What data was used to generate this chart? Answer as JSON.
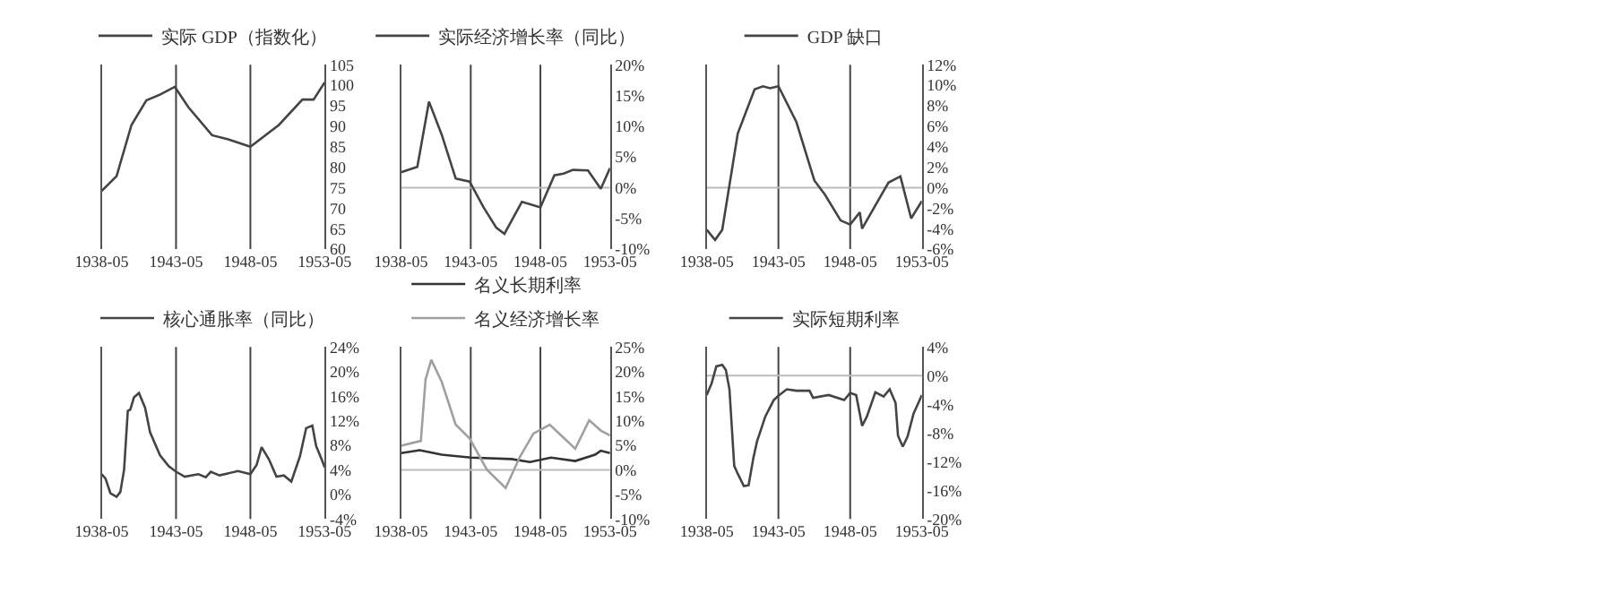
{
  "chart_data": [
    {
      "type": "line",
      "legend": "top",
      "xlim": [
        "1938-05",
        "1953-05"
      ],
      "xticks": [
        "1938-05",
        "1943-05",
        "1948-05",
        "1953-05"
      ],
      "ylim": [
        60,
        105
      ],
      "yticks": [
        60,
        65,
        70,
        75,
        80,
        85,
        90,
        95,
        100,
        105
      ],
      "ref_lines": [
        {
          "axis": "x",
          "value": "1943-05",
          "color": "#444444"
        },
        {
          "axis": "x",
          "value": "1948-05",
          "color": "#444444"
        }
      ],
      "series": [
        {
          "name": "实际 GDP（指数化）",
          "color": "#444444",
          "x": [
            "1938-05",
            "1939-05",
            "1940-05",
            "1941-05",
            "1942-04",
            "1943-04",
            "1944-03",
            "1945-10",
            "1946-11",
            "1948-05",
            "1950-04",
            "1951-11",
            "1952-08",
            "1953-05"
          ],
          "values": [
            74.2,
            77.8,
            90.3,
            96.3,
            97.7,
            99.6,
            94.6,
            87.8,
            86.8,
            85,
            90.3,
            96.5,
            96.5,
            100.7
          ]
        }
      ]
    },
    {
      "type": "line",
      "legend": "top",
      "xlim": [
        "1938-05",
        "1953-05"
      ],
      "xticks": [
        "1938-05",
        "1943-05",
        "1948-05",
        "1953-05"
      ],
      "ylim": [
        -10,
        20
      ],
      "yticks": [
        {
          "value": -10,
          "label": "-10%"
        },
        {
          "value": -5,
          "label": "-5%"
        },
        {
          "value": 0,
          "label": "0%"
        },
        {
          "value": 5,
          "label": "5%"
        },
        {
          "value": 10,
          "label": "10%"
        },
        {
          "value": 15,
          "label": "15%"
        },
        {
          "value": 20,
          "label": "20%"
        }
      ],
      "ref_lines": [
        {
          "axis": "x",
          "value": "1943-05",
          "color": "#444444"
        },
        {
          "axis": "x",
          "value": "1948-05",
          "color": "#444444"
        },
        {
          "axis": "y",
          "value": 0,
          "color": "#bbbbbb"
        }
      ],
      "series": [
        {
          "name": "实际经济增长率（同比）",
          "color": "#444444",
          "x": [
            "1938-05",
            "1939-07",
            "1940-05",
            "1941-04",
            "1942-04",
            "1943-04",
            "1944-04",
            "1945-03",
            "1945-10",
            "1947-01",
            "1948-05",
            "1949-05",
            "1950-01",
            "1950-09",
            "1951-10",
            "1952-09",
            "1953-05"
          ],
          "values": [
            2.5,
            3.4,
            14,
            8.6,
            1.5,
            1.0,
            -3.2,
            -6.5,
            -7.5,
            -2.3,
            -3.2,
            2.0,
            2.3,
            2.9,
            2.8,
            -0.2,
            3.2
          ]
        }
      ]
    },
    {
      "type": "line",
      "legend": "top",
      "xlim": [
        "1938-05",
        "1953-05"
      ],
      "xticks": [
        "1938-05",
        "1943-05",
        "1948-05",
        "1953-05"
      ],
      "ylim": [
        -6,
        12
      ],
      "yticks": [
        {
          "value": -6,
          "label": "-6%"
        },
        {
          "value": -4,
          "label": "-4%"
        },
        {
          "value": -2,
          "label": "-2%"
        },
        {
          "value": 0,
          "label": "0%"
        },
        {
          "value": 2,
          "label": "2%"
        },
        {
          "value": 4,
          "label": "4%"
        },
        {
          "value": 6,
          "label": "6%"
        },
        {
          "value": 8,
          "label": "8%"
        },
        {
          "value": 10,
          "label": "10%"
        },
        {
          "value": 12,
          "label": "12%"
        }
      ],
      "ref_lines": [
        {
          "axis": "x",
          "value": "1943-05",
          "color": "#444444"
        },
        {
          "axis": "x",
          "value": "1948-05",
          "color": "#444444"
        },
        {
          "axis": "y",
          "value": 0,
          "color": "#bbbbbb"
        }
      ],
      "series": [
        {
          "name": "GDP 缺口",
          "color": "#444444",
          "x": [
            "1938-05",
            "1938-12",
            "1939-06",
            "1940-07",
            "1941-09",
            "1942-04",
            "1942-10",
            "1943-05",
            "1944-08",
            "1945-11",
            "1946-08",
            "1947-09",
            "1948-05",
            "1949-01",
            "1949-03",
            "1951-01",
            "1951-11",
            "1952-08",
            "1953-05"
          ],
          "values": [
            -4.1,
            -5.1,
            -4.1,
            5.3,
            9.6,
            9.9,
            9.7,
            9.9,
            6.4,
            0.7,
            -0.7,
            -3.2,
            -3.6,
            -2.4,
            -4.0,
            0.5,
            1.1,
            -3.0,
            -1.3
          ]
        }
      ]
    },
    {
      "type": "line",
      "legend": "top",
      "xlim": [
        "1938-05",
        "1953-05"
      ],
      "xticks": [
        "1938-05",
        "1943-05",
        "1948-05",
        "1953-05"
      ],
      "ylim": [
        -4,
        24
      ],
      "yticks": [
        {
          "value": -4,
          "label": "-4%"
        },
        {
          "value": 0,
          "label": "0%"
        },
        {
          "value": 4,
          "label": "4%"
        },
        {
          "value": 8,
          "label": "8%"
        },
        {
          "value": 12,
          "label": "12%"
        },
        {
          "value": 16,
          "label": "16%"
        },
        {
          "value": 20,
          "label": "20%"
        },
        {
          "value": 24,
          "label": "24%"
        }
      ],
      "ref_lines": [
        {
          "axis": "x",
          "value": "1943-05",
          "color": "#444444"
        },
        {
          "axis": "x",
          "value": "1948-05",
          "color": "#444444"
        }
      ],
      "series": [
        {
          "name": "核心通胀率（同比）",
          "color": "#444444",
          "x": [
            "1938-05",
            "1938-08",
            "1938-12",
            "1939-05",
            "1939-08",
            "1939-11",
            "1940-02",
            "1940-04",
            "1940-07",
            "1940-11",
            "1941-04",
            "1941-08",
            "1942-04",
            "1942-11",
            "1943-05",
            "1943-12",
            "1944-11",
            "1945-05",
            "1945-09",
            "1946-04",
            "1947-07",
            "1948-05",
            "1948-10",
            "1949-02",
            "1949-08",
            "1950-02",
            "1950-08",
            "1951-02",
            "1951-09",
            "1952-02",
            "1952-07",
            "1952-10",
            "1953-03",
            "1953-05"
          ],
          "values": [
            3.3,
            2.6,
            0.2,
            -0.4,
            0.4,
            4.0,
            13.6,
            13.8,
            15.8,
            16.5,
            14.1,
            10.1,
            6.4,
            4.6,
            3.7,
            2.9,
            3.3,
            2.8,
            3.7,
            3.1,
            3.8,
            3.3,
            4.8,
            7.7,
            5.7,
            2.9,
            3.1,
            2.1,
            6.2,
            10.8,
            11.2,
            7.9,
            5.5,
            4.4
          ]
        }
      ]
    },
    {
      "type": "line",
      "legend": "top",
      "xlim": [
        "1938-05",
        "1953-05"
      ],
      "xticks": [
        "1938-05",
        "1943-05",
        "1948-05",
        "1953-05"
      ],
      "ylim": [
        -10,
        25
      ],
      "yticks": [
        {
          "value": -10,
          "label": "-10%"
        },
        {
          "value": -5,
          "label": "-5%"
        },
        {
          "value": 0,
          "label": "0%"
        },
        {
          "value": 5,
          "label": "5%"
        },
        {
          "value": 10,
          "label": "10%"
        },
        {
          "value": 15,
          "label": "15%"
        },
        {
          "value": 20,
          "label": "20%"
        },
        {
          "value": 25,
          "label": "25%"
        }
      ],
      "ref_lines": [
        {
          "axis": "x",
          "value": "1943-05",
          "color": "#444444"
        },
        {
          "axis": "x",
          "value": "1948-05",
          "color": "#444444"
        },
        {
          "axis": "y",
          "value": 0,
          "color": "#bbbbbb"
        }
      ],
      "series": [
        {
          "name": "名义长期利率",
          "color": "#333333",
          "x": [
            "1938-05",
            "1939-09",
            "1941-04",
            "1943-05",
            "1946-04",
            "1947-08",
            "1949-02",
            "1950-11",
            "1952-04",
            "1952-09",
            "1953-05"
          ],
          "values": [
            3.4,
            4.0,
            3.1,
            2.5,
            2.2,
            1.6,
            2.5,
            1.8,
            3.1,
            3.9,
            3.4
          ]
        },
        {
          "name": "名义经济增长率",
          "color": "#a0a0a0",
          "x": [
            "1938-05",
            "1939-10",
            "1940-02",
            "1940-07",
            "1941-04",
            "1942-04",
            "1943-04",
            "1944-07",
            "1945-11",
            "1946-11",
            "1947-11",
            "1949-01",
            "1950-03",
            "1950-11",
            "1951-11",
            "1952-09",
            "1953-05"
          ],
          "values": [
            4.9,
            5.9,
            18.4,
            22.4,
            17.9,
            9.2,
            6.4,
            0,
            -3.7,
            2.5,
            7.4,
            9.2,
            6.1,
            4.3,
            10.1,
            8.0,
            7.0
          ]
        }
      ]
    },
    {
      "type": "line",
      "legend": "top",
      "xlim": [
        "1938-05",
        "1953-05"
      ],
      "xticks": [
        "1938-05",
        "1943-05",
        "1948-05",
        "1953-05"
      ],
      "ylim": [
        -20,
        4
      ],
      "yticks": [
        {
          "value": -20,
          "label": "-20%"
        },
        {
          "value": -16,
          "label": "-16%"
        },
        {
          "value": -12,
          "label": "-12%"
        },
        {
          "value": -8,
          "label": "-8%"
        },
        {
          "value": -4,
          "label": "-4%"
        },
        {
          "value": 0,
          "label": "0%"
        },
        {
          "value": 4,
          "label": "4%"
        }
      ],
      "ref_lines": [
        {
          "axis": "x",
          "value": "1943-05",
          "color": "#444444"
        },
        {
          "axis": "x",
          "value": "1948-05",
          "color": "#444444"
        },
        {
          "axis": "y",
          "value": 0,
          "color": "#bbbbbb"
        }
      ],
      "series": [
        {
          "name": "实际短期利率",
          "color": "#444444",
          "x": [
            "1938-05",
            "1938-09",
            "1939-01",
            "1939-06",
            "1939-09",
            "1939-12",
            "1940-04",
            "1940-07",
            "1940-12",
            "1941-04",
            "1941-08",
            "1941-11",
            "1942-06",
            "1943-01",
            "1943-05",
            "1943-12",
            "1944-08",
            "1945-07",
            "1945-10",
            "1946-11",
            "1947-12",
            "1948-05",
            "1948-10",
            "1949-03",
            "1949-07",
            "1950-02",
            "1950-09",
            "1951-02",
            "1951-07",
            "1951-09",
            "1952-01",
            "1952-05",
            "1952-10",
            "1953-05"
          ],
          "values": [
            -2.7,
            -1.1,
            1.3,
            1.5,
            0.8,
            -1.9,
            -12.6,
            -13.7,
            -15.4,
            -15.3,
            -11.5,
            -9.2,
            -5.7,
            -3.4,
            -2.8,
            -1.9,
            -2.1,
            -2.1,
            -3.1,
            -2.7,
            -3.4,
            -2.4,
            -2.7,
            -7.0,
            -5.7,
            -2.3,
            -2.9,
            -1.9,
            -3.8,
            -8.4,
            -9.9,
            -8.5,
            -5.3,
            -2.7
          ]
        }
      ]
    }
  ]
}
